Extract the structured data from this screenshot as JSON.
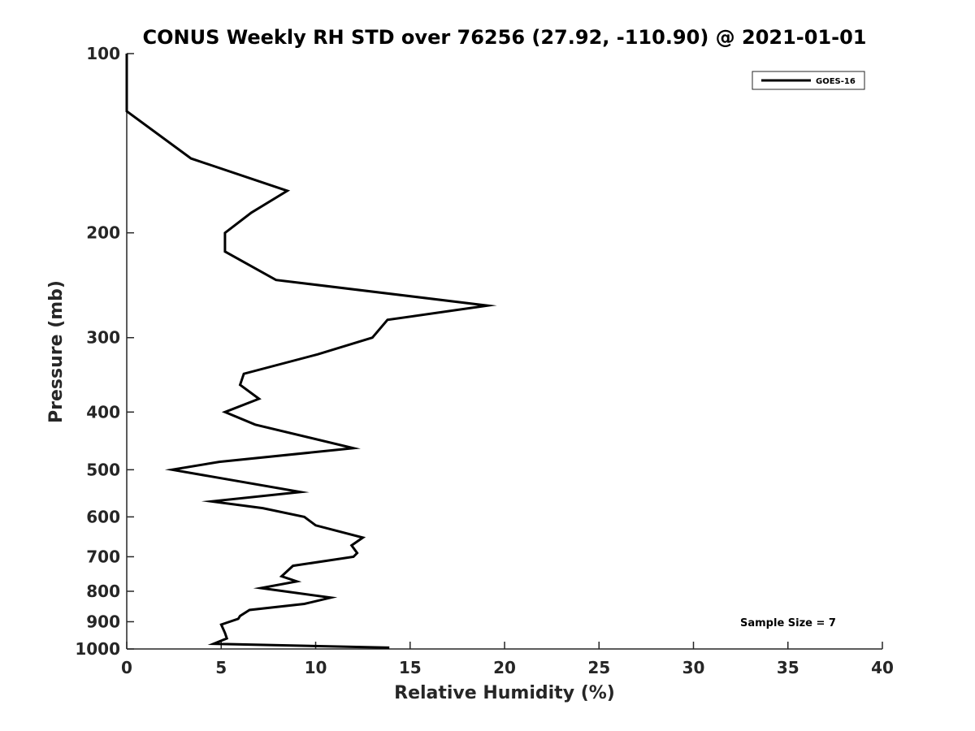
{
  "chart_data": {
    "type": "line",
    "title": "CONUS Weekly RH STD over 76256 (27.92, -110.90) @ 2021-01-01",
    "xlabel": "Relative Humidity (%)",
    "ylabel": "Pressure (mb)",
    "xlim": [
      0,
      40
    ],
    "ylim": [
      100,
      1000
    ],
    "yscale": "log",
    "y_reversed": true,
    "x_ticks": [
      0,
      5,
      10,
      15,
      20,
      25,
      30,
      35,
      40
    ],
    "x_tick_labels": [
      "0",
      "5",
      "10",
      "15",
      "20",
      "25",
      "30",
      "35",
      "40"
    ],
    "y_ticks": [
      100,
      200,
      300,
      400,
      500,
      600,
      700,
      800,
      900,
      1000
    ],
    "y_tick_labels": [
      "100",
      "200",
      "300",
      "400",
      "500",
      "600",
      "700",
      "800",
      "900",
      "1000"
    ],
    "grid": false,
    "legend_position": "top-right",
    "series": [
      {
        "name": "GOES-16",
        "color": "#000000",
        "x": [
          0.0,
          0.0,
          3.4,
          8.5,
          6.6,
          5.2,
          5.2,
          7.9,
          19.1,
          13.8,
          13.0,
          10.1,
          6.2,
          6.0,
          7.0,
          5.2,
          6.8,
          12.0,
          4.9,
          2.4,
          9.2,
          4.5,
          7.2,
          9.4,
          10.0,
          12.5,
          11.9,
          12.2,
          12.0,
          8.8,
          8.2,
          9.0,
          7.1,
          10.8,
          9.4,
          6.5,
          6.0,
          5.9,
          5.0,
          5.2,
          5.3,
          4.6,
          13.9
        ],
        "y": [
          100,
          125,
          150,
          170,
          185,
          200,
          215,
          240,
          265,
          280,
          300,
          320,
          345,
          360,
          380,
          400,
          420,
          460,
          485,
          500,
          545,
          565,
          580,
          600,
          620,
          650,
          670,
          690,
          700,
          725,
          755,
          770,
          790,
          820,
          840,
          860,
          880,
          890,
          910,
          940,
          960,
          980,
          995
        ]
      }
    ],
    "annotations": [
      {
        "text": "Sample Size = 7",
        "x": 34.5,
        "y": 900
      }
    ]
  }
}
